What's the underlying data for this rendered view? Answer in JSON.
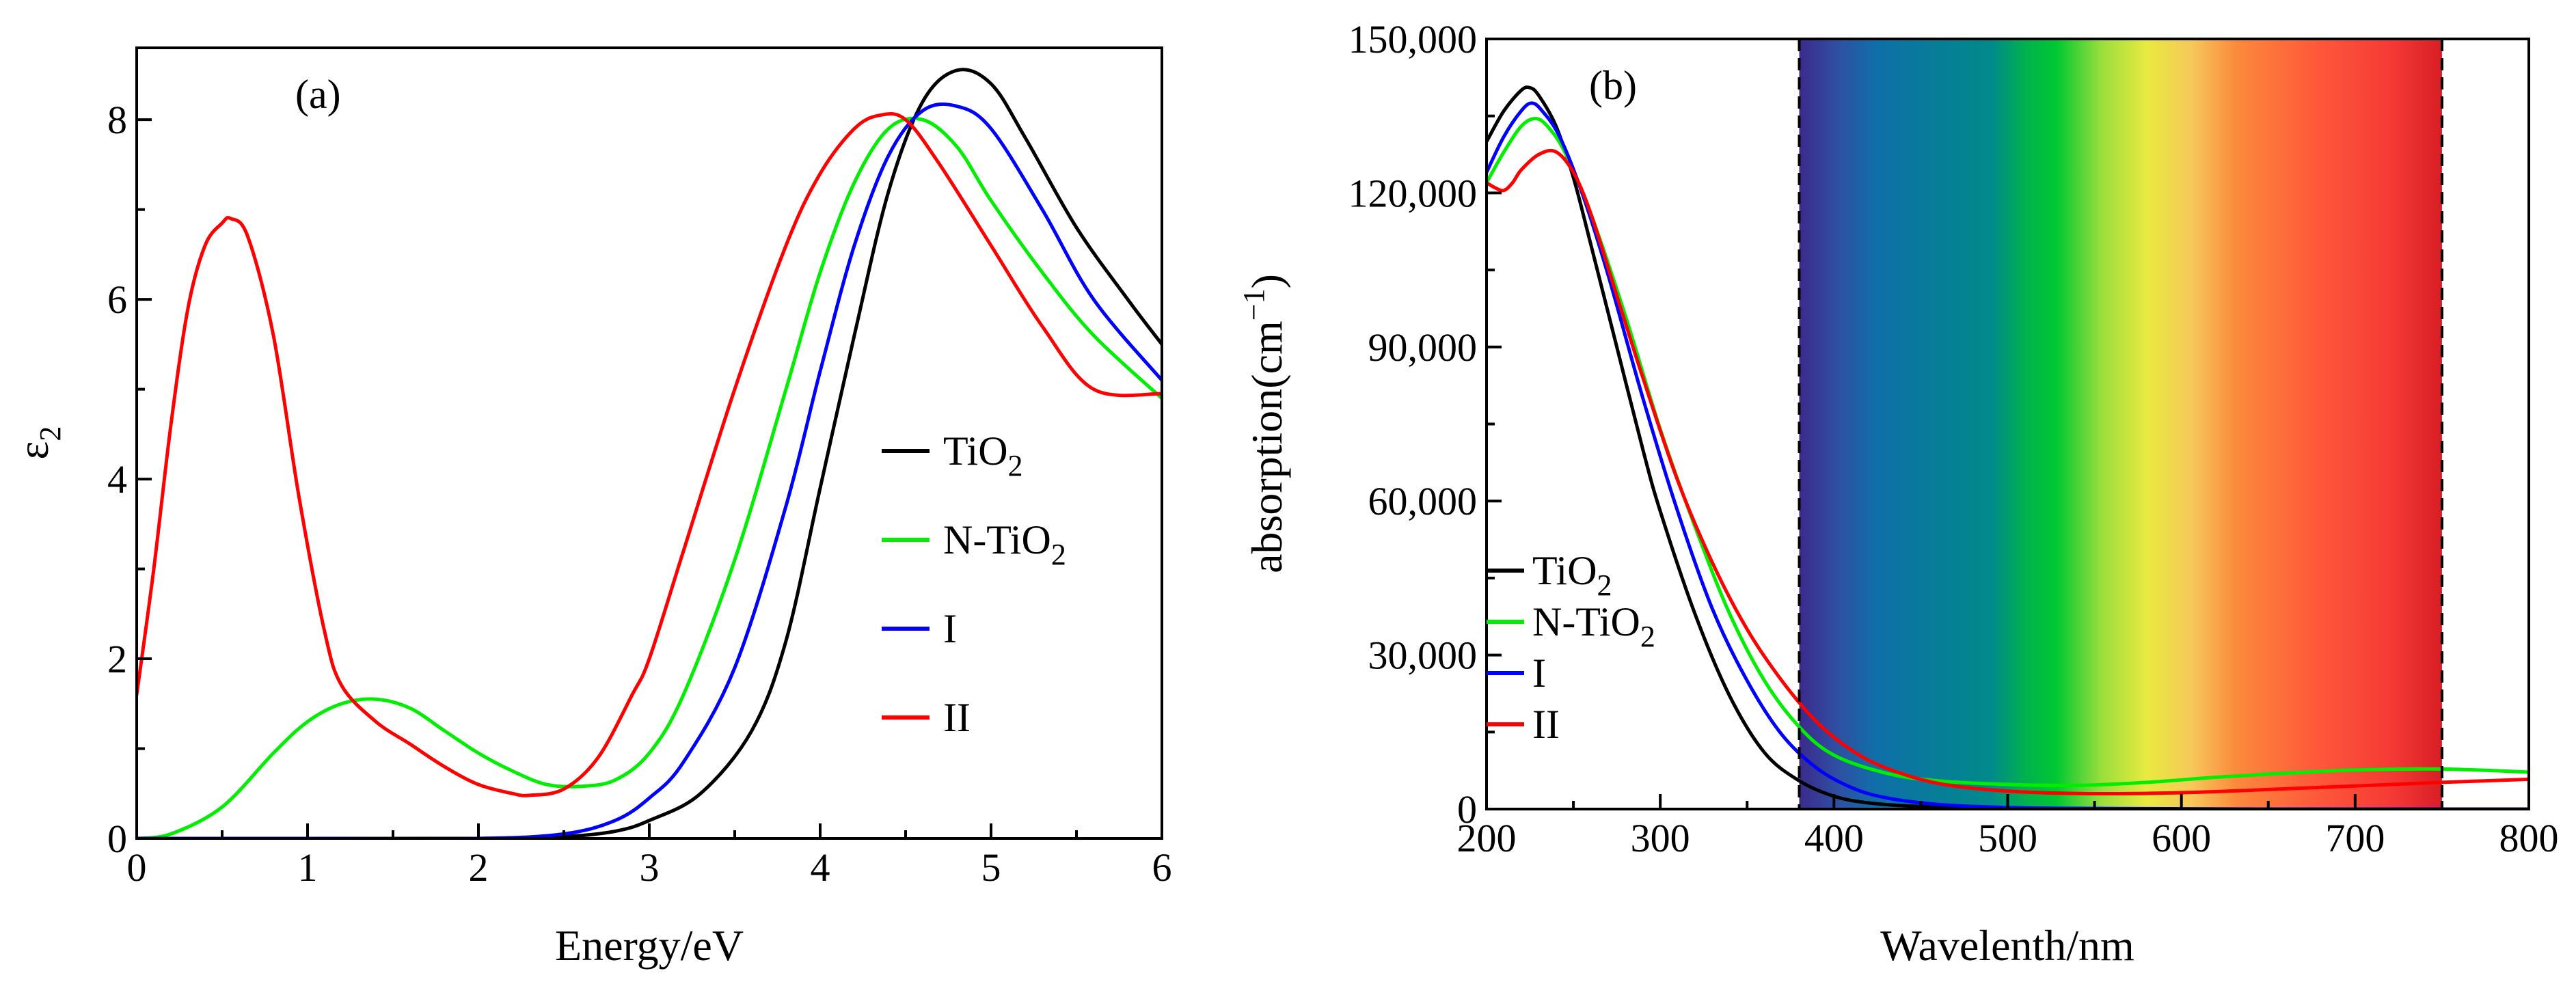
{
  "chart_data": [
    {
      "type": "line",
      "panel_label": "(a)",
      "xlabel": "Energy/eV",
      "ylabel": "ε",
      "ylabel_sub": "2",
      "xlim": [
        0,
        6
      ],
      "ylim": [
        0,
        8.8
      ],
      "xticks": [
        0,
        1,
        2,
        3,
        4,
        5,
        6
      ],
      "xtick_labels": [
        "0",
        "1",
        "2",
        "3",
        "4",
        "5",
        "6"
      ],
      "yticks": [
        0,
        2,
        4,
        6,
        8
      ],
      "ytick_labels": [
        "0",
        "2",
        "4",
        "6",
        "8"
      ],
      "grid": false,
      "legend": {
        "position": "middle-right",
        "entries": [
          {
            "name": "TiO",
            "sub": "2",
            "color": "#000000"
          },
          {
            "name": "N-TiO",
            "sub": "2",
            "color": "#00ee00"
          },
          {
            "name": "I",
            "sub": "",
            "color": "#0000ff"
          },
          {
            "name": "II",
            "sub": "",
            "color": "#ff0000"
          }
        ]
      },
      "series": [
        {
          "name": "TiO2",
          "color": "#000000",
          "x": [
            0,
            1.0,
            2.0,
            2.5,
            2.8,
            3.0,
            3.3,
            3.6,
            3.8,
            4.0,
            4.2,
            4.4,
            4.6,
            4.8,
            5.0,
            5.2,
            5.5,
            5.8,
            6.0
          ],
          "y": [
            0,
            0,
            0,
            0.02,
            0.08,
            0.2,
            0.5,
            1.2,
            2.2,
            3.9,
            5.6,
            7.2,
            8.2,
            8.55,
            8.4,
            7.8,
            6.8,
            6.0,
            5.5
          ]
        },
        {
          "name": "N-TiO2",
          "color": "#00ee00",
          "x": [
            0,
            0.2,
            0.5,
            0.8,
            1.0,
            1.2,
            1.4,
            1.6,
            1.8,
            2.0,
            2.2,
            2.4,
            2.6,
            2.8,
            3.0,
            3.2,
            3.5,
            3.8,
            4.0,
            4.2,
            4.4,
            4.6,
            4.8,
            5.0,
            5.3,
            5.6,
            6.0
          ],
          "y": [
            0,
            0.05,
            0.35,
            0.95,
            1.3,
            1.5,
            1.55,
            1.45,
            1.2,
            0.95,
            0.75,
            0.6,
            0.58,
            0.65,
            0.95,
            1.6,
            3.1,
            5.0,
            6.3,
            7.3,
            7.9,
            8.0,
            7.7,
            7.1,
            6.3,
            5.6,
            4.9
          ]
        },
        {
          "name": "I",
          "color": "#0000ff",
          "x": [
            0,
            1.0,
            2.0,
            2.5,
            2.8,
            3.0,
            3.2,
            3.5,
            3.8,
            4.0,
            4.2,
            4.4,
            4.6,
            4.8,
            5.0,
            5.3,
            5.6,
            6.0
          ],
          "y": [
            0,
            0,
            0,
            0.05,
            0.2,
            0.45,
            0.85,
            1.9,
            3.7,
            5.2,
            6.6,
            7.6,
            8.1,
            8.15,
            7.9,
            7.0,
            6.0,
            5.1
          ]
        },
        {
          "name": "II",
          "color": "#ff0000",
          "x": [
            0,
            0.1,
            0.2,
            0.3,
            0.4,
            0.5,
            0.55,
            0.65,
            0.8,
            0.95,
            1.1,
            1.2,
            1.4,
            1.6,
            1.8,
            2.0,
            2.2,
            2.3,
            2.5,
            2.7,
            2.9,
            3.0,
            3.2,
            3.5,
            3.8,
            4.0,
            4.2,
            4.35,
            4.5,
            4.7,
            5.0,
            5.3,
            5.6,
            6.0
          ],
          "y": [
            1.6,
            3.0,
            4.6,
            5.9,
            6.6,
            6.85,
            6.9,
            6.7,
            5.6,
            3.8,
            2.3,
            1.7,
            1.3,
            1.05,
            0.8,
            0.6,
            0.5,
            0.48,
            0.55,
            0.9,
            1.6,
            2.0,
            3.2,
            5.0,
            6.6,
            7.4,
            7.9,
            8.05,
            8.0,
            7.5,
            6.6,
            5.7,
            5.0,
            4.95
          ]
        }
      ]
    },
    {
      "type": "line",
      "panel_label": "(b)",
      "xlabel": "Wavelenth/nm",
      "ylabel": "absorption(cm",
      "ylabel_sup": "−1",
      "ylabel_close": ")",
      "xlim": [
        200,
        800
      ],
      "ylim": [
        0,
        150000
      ],
      "xticks": [
        200,
        300,
        400,
        500,
        600,
        700,
        800
      ],
      "xtick_labels": [
        "200",
        "300",
        "400",
        "500",
        "600",
        "700",
        "800"
      ],
      "yticks": [
        0,
        30000,
        60000,
        90000,
        120000,
        150000
      ],
      "ytick_labels": [
        "0",
        "30,000",
        "60,000",
        "90,000",
        "120,000",
        "150,000"
      ],
      "grid": false,
      "visible_band": {
        "from": 380,
        "to": 750
      },
      "legend": {
        "position": "bottom-left",
        "entries": [
          {
            "name": "TiO",
            "sub": "2",
            "color": "#000000"
          },
          {
            "name": "N-TiO",
            "sub": "2",
            "color": "#00ee00"
          },
          {
            "name": "I",
            "sub": "",
            "color": "#0000ff"
          },
          {
            "name": "II",
            "sub": "",
            "color": "#ff0000"
          }
        ]
      },
      "series": [
        {
          "name": "TiO2",
          "color": "#000000",
          "x": [
            200,
            210,
            220,
            225,
            230,
            240,
            250,
            260,
            275,
            290,
            300,
            320,
            340,
            360,
            380,
            400,
            420,
            450,
            500,
            550,
            600,
            650,
            700,
            750,
            800
          ],
          "y": [
            130000,
            136000,
            140000,
            140500,
            139000,
            133000,
            123000,
            110000,
            90000,
            70000,
            58000,
            38000,
            22000,
            11000,
            5500,
            2500,
            1200,
            500,
            200,
            100,
            50,
            0,
            0,
            0,
            0
          ]
        },
        {
          "name": "N-TiO2",
          "color": "#00ee00",
          "x": [
            200,
            210,
            220,
            228,
            235,
            245,
            260,
            280,
            300,
            320,
            340,
            360,
            380,
            400,
            430,
            460,
            500,
            540,
            580,
            620,
            660,
            700,
            750,
            800
          ],
          "y": [
            122000,
            128000,
            133000,
            134500,
            133000,
            128000,
            116000,
            96000,
            74000,
            55000,
            38000,
            25000,
            16000,
            10500,
            7000,
            5500,
            4800,
            4600,
            5200,
            6200,
            7000,
            7600,
            7800,
            7200
          ]
        },
        {
          "name": "I",
          "color": "#0000ff",
          "x": [
            200,
            210,
            220,
            226,
            232,
            242,
            255,
            270,
            290,
            310,
            330,
            350,
            370,
            390,
            410,
            430,
            460,
            500,
            550,
            600,
            700,
            800
          ],
          "y": [
            124000,
            131000,
            136000,
            137500,
            136000,
            131000,
            120000,
            104000,
            80000,
            58000,
            39000,
            25000,
            14500,
            8000,
            4200,
            2200,
            900,
            300,
            100,
            0,
            0,
            0
          ]
        },
        {
          "name": "II",
          "color": "#ff0000",
          "x": [
            200,
            205,
            210,
            215,
            220,
            230,
            240,
            250,
            260,
            275,
            290,
            310,
            330,
            350,
            370,
            390,
            410,
            430,
            460,
            500,
            550,
            600,
            650,
            700,
            750,
            800
          ],
          "y": [
            122000,
            121000,
            120500,
            122000,
            124500,
            127500,
            128000,
            124000,
            116000,
            100000,
            84000,
            64000,
            48000,
            35000,
            25000,
            17000,
            11500,
            8000,
            5000,
            3500,
            3000,
            3200,
            3800,
            4500,
            5200,
            5800
          ]
        }
      ]
    }
  ]
}
